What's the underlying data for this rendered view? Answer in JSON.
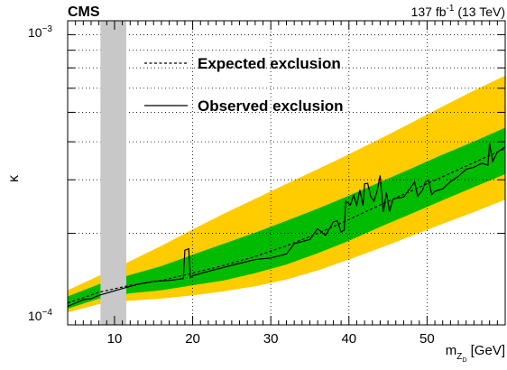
{
  "chart_data": {
    "type": "line",
    "experiment_label": "CMS",
    "lumi_label_main": "137 fb",
    "lumi_label_exp": "-1",
    "lumi_label_tail": " (13 TeV)",
    "xlabel_main": "m",
    "xlabel_sub1": "Z",
    "xlabel_sub2": "D",
    "xlabel_unit": " [GeV]",
    "ylabel": "κ",
    "yscale": "log",
    "xlim": [
      4,
      60
    ],
    "ylim": [
      0.0001,
      0.001
    ],
    "x_ticks": [
      10,
      20,
      30,
      40,
      50
    ],
    "y_tick_labels": [
      {
        "base": "10",
        "exp": "−3",
        "value": 0.001
      },
      {
        "base": "10",
        "exp": "−4",
        "value": 0.0001
      }
    ],
    "grid": true,
    "legend_position": "top-left",
    "legend": [
      {
        "label": "Expected exclusion",
        "style": "dashed"
      },
      {
        "label": "Observed exclusion",
        "style": "solid"
      }
    ],
    "excluded_band": {
      "x_min": 8.2,
      "x_max": 11.5,
      "color": "#c8c8c8"
    },
    "colors": {
      "band_2sigma": "#ffcc00",
      "band_1sigma": "#00bb00",
      "excluded": "#c8c8c8"
    },
    "expected": {
      "x": [
        4,
        8,
        12,
        16,
        20,
        24,
        28,
        32,
        36,
        40,
        44,
        48,
        52,
        56,
        60
      ],
      "y": [
        0.000118,
        0.000128,
        0.000135,
        0.00014,
        0.000148,
        0.000157,
        0.000168,
        0.000182,
        0.0002,
        0.000222,
        0.000248,
        0.000276,
        0.000307,
        0.000342,
        0.00038
      ]
    },
    "band_1sigma": {
      "x": [
        4,
        8,
        12,
        16,
        20,
        24,
        28,
        32,
        36,
        40,
        44,
        48,
        52,
        56,
        60
      ],
      "low": [
        0.000113,
        0.000122,
        0.000127,
        0.00013,
        0.000135,
        0.00014,
        0.000148,
        0.000158,
        0.000172,
        0.000189,
        0.00021,
        0.000232,
        0.000257,
        0.000284,
        0.000313
      ],
      "high": [
        0.000124,
        0.000136,
        0.000146,
        0.000156,
        0.00017,
        0.000185,
        0.000201,
        0.00022,
        0.000241,
        0.000266,
        0.000295,
        0.000327,
        0.000363,
        0.000401,
        0.000445
      ]
    },
    "band_2sigma": {
      "x": [
        4,
        8,
        12,
        16,
        20,
        24,
        28,
        32,
        36,
        40,
        44,
        48,
        52,
        56,
        60
      ],
      "low": [
        0.00011,
        0.000117,
        0.00012,
        0.000122,
        0.000125,
        0.000129,
        0.000134,
        0.000141,
        0.000151,
        0.000164,
        0.000179,
        0.000196,
        0.000215,
        0.000235,
        0.000258
      ],
      "high": [
        0.00013,
        0.000145,
        0.000162,
        0.000182,
        0.000206,
        0.000232,
        0.00026,
        0.000291,
        0.000325,
        0.000364,
        0.000409,
        0.000462,
        0.000523,
        0.00059,
        0.00066
      ]
    },
    "observed": {
      "x": [
        4,
        5,
        6,
        7,
        8,
        11.6,
        13,
        15,
        17,
        18.8,
        19,
        19.5,
        19.7,
        20,
        22,
        25,
        28,
        30,
        32,
        33,
        35,
        36,
        37,
        38,
        38.5,
        39,
        39.4,
        39.6,
        40.2,
        40.6,
        41,
        41.4,
        41.8,
        42,
        42.4,
        42.8,
        43.2,
        43.6,
        44,
        44.4,
        44.8,
        45.2,
        45.6,
        46,
        47,
        48.4,
        48.8,
        49.4,
        49.8,
        50.2,
        50.6,
        51,
        52,
        53,
        54,
        55,
        56,
        57,
        57.8,
        58,
        58.4,
        59,
        60
      ],
      "y": [
        0.000115,
        0.000118,
        0.000121,
        0.000122,
        0.000125,
        0.000133,
        0.000136,
        0.000139,
        0.00014,
        0.000142,
        0.000176,
        0.000178,
        0.000143,
        0.000145,
        0.00015,
        0.000157,
        0.000164,
        0.000166,
        0.000171,
        0.000185,
        0.000191,
        0.000207,
        0.000197,
        0.000218,
        0.00022,
        0.000202,
        0.000205,
        0.000255,
        0.000248,
        0.000267,
        0.000248,
        0.000278,
        0.000247,
        0.000291,
        0.000292,
        0.000264,
        0.000255,
        0.000275,
        0.00031,
        0.000235,
        0.000272,
        0.000236,
        0.000258,
        0.000261,
        0.000263,
        0.000295,
        0.000265,
        0.000277,
        0.000296,
        0.000298,
        0.000268,
        0.000275,
        0.00028,
        0.000296,
        0.000308,
        0.000325,
        0.00033,
        0.00034,
        0.000335,
        0.000395,
        0.000345,
        0.00037,
        0.000385
      ]
    }
  }
}
